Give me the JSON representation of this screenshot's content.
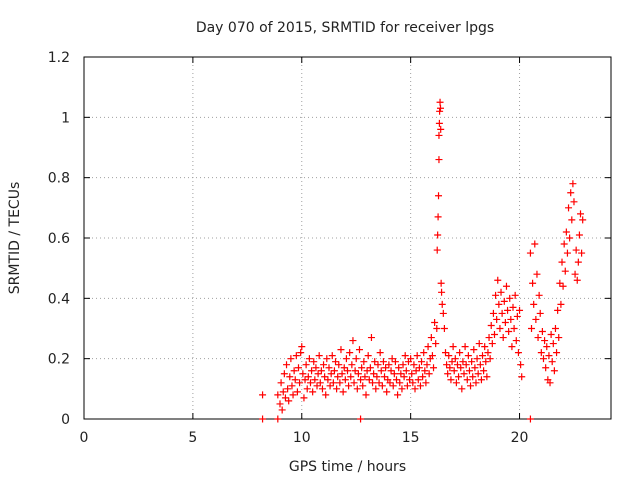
{
  "chart_data": {
    "type": "scatter",
    "title": "Day 070 of 2015, SRMTID for receiver lpgs",
    "xlabel": "GPS time / hours",
    "ylabel": "SRMTID / TECUs",
    "xlim": [
      0,
      24.2
    ],
    "ylim": [
      0,
      1.2
    ],
    "x_ticks": [
      0,
      5,
      10,
      15,
      20
    ],
    "x_tick_labels": [
      "0",
      "5",
      "10",
      "15",
      "20"
    ],
    "y_ticks": [
      0,
      0.2,
      0.4,
      0.6,
      0.8,
      1.0,
      1.2
    ],
    "y_tick_labels": [
      "0",
      "0.2",
      "0.4",
      "0.6",
      "0.8",
      "1",
      "1.2"
    ],
    "grid": true,
    "marker": "+",
    "series": [
      {
        "name": "SRMTID",
        "color": "#ff0000",
        "points": [
          [
            8.2,
            0.08
          ],
          [
            8.2,
            0.0
          ],
          [
            8.9,
            0.0
          ],
          [
            8.9,
            0.08
          ],
          [
            9.0,
            0.05
          ],
          [
            9.05,
            0.12
          ],
          [
            9.1,
            0.03
          ],
          [
            9.15,
            0.09
          ],
          [
            9.2,
            0.15
          ],
          [
            9.25,
            0.07
          ],
          [
            9.3,
            0.18
          ],
          [
            9.35,
            0.1
          ],
          [
            9.4,
            0.06
          ],
          [
            9.45,
            0.14
          ],
          [
            9.5,
            0.2
          ],
          [
            9.55,
            0.11
          ],
          [
            9.6,
            0.08
          ],
          [
            9.65,
            0.16
          ],
          [
            9.7,
            0.13
          ],
          [
            9.75,
            0.21
          ],
          [
            9.8,
            0.09
          ],
          [
            9.85,
            0.17
          ],
          [
            9.9,
            0.12
          ],
          [
            9.95,
            0.22
          ],
          [
            10.0,
            0.24
          ],
          [
            10.05,
            0.15
          ],
          [
            10.1,
            0.07
          ],
          [
            10.15,
            0.13
          ],
          [
            10.2,
            0.18
          ],
          [
            10.25,
            0.1
          ],
          [
            10.3,
            0.14
          ],
          [
            10.35,
            0.2
          ],
          [
            10.4,
            0.12
          ],
          [
            10.45,
            0.16
          ],
          [
            10.5,
            0.09
          ],
          [
            10.55,
            0.19
          ],
          [
            10.6,
            0.13
          ],
          [
            10.65,
            0.17
          ],
          [
            10.7,
            0.11
          ],
          [
            10.75,
            0.15
          ],
          [
            10.8,
            0.21
          ],
          [
            10.85,
            0.12
          ],
          [
            10.9,
            0.16
          ],
          [
            10.95,
            0.1
          ],
          [
            11.0,
            0.18
          ],
          [
            11.05,
            0.14
          ],
          [
            11.1,
            0.08
          ],
          [
            11.15,
            0.2
          ],
          [
            11.2,
            0.13
          ],
          [
            11.25,
            0.17
          ],
          [
            11.3,
            0.11
          ],
          [
            11.35,
            0.15
          ],
          [
            11.4,
            0.21
          ],
          [
            11.45,
            0.12
          ],
          [
            11.5,
            0.16
          ],
          [
            11.55,
            0.19
          ],
          [
            11.6,
            0.1
          ],
          [
            11.65,
            0.14
          ],
          [
            11.7,
            0.18
          ],
          [
            11.75,
            0.12
          ],
          [
            11.8,
            0.23
          ],
          [
            11.85,
            0.15
          ],
          [
            11.9,
            0.09
          ],
          [
            11.95,
            0.17
          ],
          [
            12.0,
            0.13
          ],
          [
            12.05,
            0.2
          ],
          [
            12.1,
            0.16
          ],
          [
            12.15,
            0.11
          ],
          [
            12.2,
            0.22
          ],
          [
            12.25,
            0.14
          ],
          [
            12.3,
            0.18
          ],
          [
            12.35,
            0.26
          ],
          [
            12.4,
            0.12
          ],
          [
            12.45,
            0.16
          ],
          [
            12.5,
            0.2
          ],
          [
            12.55,
            0.1
          ],
          [
            12.6,
            0.15
          ],
          [
            12.65,
            0.23
          ],
          [
            12.7,
            0.0
          ],
          [
            12.7,
            0.13
          ],
          [
            12.75,
            0.17
          ],
          [
            12.8,
            0.11
          ],
          [
            12.85,
            0.19
          ],
          [
            12.9,
            0.14
          ],
          [
            12.95,
            0.08
          ],
          [
            13.0,
            0.16
          ],
          [
            13.05,
            0.21
          ],
          [
            13.1,
            0.13
          ],
          [
            13.15,
            0.17
          ],
          [
            13.2,
            0.27
          ],
          [
            13.25,
            0.12
          ],
          [
            13.3,
            0.15
          ],
          [
            13.35,
            0.19
          ],
          [
            13.4,
            0.1
          ],
          [
            13.45,
            0.14
          ],
          [
            13.5,
            0.18
          ],
          [
            13.55,
            0.12
          ],
          [
            13.6,
            0.22
          ],
          [
            13.65,
            0.16
          ],
          [
            13.7,
            0.11
          ],
          [
            13.75,
            0.19
          ],
          [
            13.8,
            0.14
          ],
          [
            13.85,
            0.17
          ],
          [
            13.9,
            0.09
          ],
          [
            13.95,
            0.13
          ],
          [
            14.0,
            0.18
          ],
          [
            14.05,
            0.12
          ],
          [
            14.1,
            0.16
          ],
          [
            14.15,
            0.2
          ],
          [
            14.2,
            0.11
          ],
          [
            14.25,
            0.15
          ],
          [
            14.3,
            0.19
          ],
          [
            14.35,
            0.13
          ],
          [
            14.4,
            0.08
          ],
          [
            14.45,
            0.17
          ],
          [
            14.5,
            0.12
          ],
          [
            14.55,
            0.15
          ],
          [
            14.6,
            0.1
          ],
          [
            14.65,
            0.18
          ],
          [
            14.7,
            0.14
          ],
          [
            14.75,
            0.21
          ],
          [
            14.8,
            0.16
          ],
          [
            14.85,
            0.11
          ],
          [
            14.9,
            0.19
          ],
          [
            14.95,
            0.13
          ],
          [
            15.0,
            0.2
          ],
          [
            15.05,
            0.15
          ],
          [
            15.1,
            0.12
          ],
          [
            15.15,
            0.18
          ],
          [
            15.2,
            0.1
          ],
          [
            15.25,
            0.16
          ],
          [
            15.3,
            0.21
          ],
          [
            15.35,
            0.13
          ],
          [
            15.4,
            0.17
          ],
          [
            15.45,
            0.11
          ],
          [
            15.5,
            0.19
          ],
          [
            15.55,
            0.14
          ],
          [
            15.6,
            0.22
          ],
          [
            15.65,
            0.16
          ],
          [
            15.7,
            0.12
          ],
          [
            15.75,
            0.18
          ],
          [
            15.8,
            0.24
          ],
          [
            15.85,
            0.15
          ],
          [
            15.9,
            0.2
          ],
          [
            15.95,
            0.27
          ],
          [
            16.0,
            0.21
          ],
          [
            16.05,
            0.17
          ],
          [
            16.1,
            0.32
          ],
          [
            16.15,
            0.25
          ],
          [
            16.2,
            0.3
          ],
          [
            16.22,
            0.56
          ],
          [
            16.24,
            0.61
          ],
          [
            16.26,
            0.67
          ],
          [
            16.28,
            0.74
          ],
          [
            16.3,
            0.86
          ],
          [
            16.3,
            0.94
          ],
          [
            16.32,
            0.98
          ],
          [
            16.33,
            1.02
          ],
          [
            16.35,
            1.05
          ],
          [
            16.37,
            1.03
          ],
          [
            16.38,
            0.96
          ],
          [
            16.4,
            0.45
          ],
          [
            16.42,
            0.42
          ],
          [
            16.45,
            0.38
          ],
          [
            16.5,
            0.35
          ],
          [
            16.55,
            0.3
          ],
          [
            16.6,
            0.22
          ],
          [
            16.65,
            0.18
          ],
          [
            16.7,
            0.15
          ],
          [
            16.75,
            0.21
          ],
          [
            16.8,
            0.17
          ],
          [
            16.85,
            0.13
          ],
          [
            16.9,
            0.19
          ],
          [
            16.95,
            0.24
          ],
          [
            17.0,
            0.16
          ],
          [
            17.05,
            0.2
          ],
          [
            17.1,
            0.12
          ],
          [
            17.15,
            0.18
          ],
          [
            17.2,
            0.14
          ],
          [
            17.25,
            0.22
          ],
          [
            17.3,
            0.17
          ],
          [
            17.35,
            0.1
          ],
          [
            17.4,
            0.19
          ],
          [
            17.45,
            0.15
          ],
          [
            17.5,
            0.24
          ],
          [
            17.55,
            0.18
          ],
          [
            17.6,
            0.13
          ],
          [
            17.65,
            0.21
          ],
          [
            17.7,
            0.16
          ],
          [
            17.75,
            0.11
          ],
          [
            17.8,
            0.19
          ],
          [
            17.85,
            0.14
          ],
          [
            17.9,
            0.23
          ],
          [
            17.95,
            0.17
          ],
          [
            18.0,
            0.12
          ],
          [
            18.05,
            0.2
          ],
          [
            18.1,
            0.15
          ],
          [
            18.15,
            0.25
          ],
          [
            18.2,
            0.18
          ],
          [
            18.25,
            0.13
          ],
          [
            18.3,
            0.21
          ],
          [
            18.35,
            0.16
          ],
          [
            18.4,
            0.24
          ],
          [
            18.45,
            0.19
          ],
          [
            18.5,
            0.14
          ],
          [
            18.55,
            0.22
          ],
          [
            18.6,
            0.27
          ],
          [
            18.65,
            0.2
          ],
          [
            18.7,
            0.31
          ],
          [
            18.75,
            0.25
          ],
          [
            18.8,
            0.35
          ],
          [
            18.85,
            0.28
          ],
          [
            18.9,
            0.41
          ],
          [
            18.95,
            0.33
          ],
          [
            19.0,
            0.46
          ],
          [
            19.05,
            0.38
          ],
          [
            19.1,
            0.3
          ],
          [
            19.15,
            0.42
          ],
          [
            19.2,
            0.35
          ],
          [
            19.25,
            0.27
          ],
          [
            19.3,
            0.39
          ],
          [
            19.35,
            0.32
          ],
          [
            19.4,
            0.44
          ],
          [
            19.45,
            0.36
          ],
          [
            19.5,
            0.29
          ],
          [
            19.55,
            0.4
          ],
          [
            19.6,
            0.33
          ],
          [
            19.65,
            0.24
          ],
          [
            19.7,
            0.37
          ],
          [
            19.75,
            0.3
          ],
          [
            19.8,
            0.41
          ],
          [
            19.85,
            0.26
          ],
          [
            19.9,
            0.34
          ],
          [
            19.95,
            0.22
          ],
          [
            20.0,
            0.36
          ],
          [
            20.05,
            0.18
          ],
          [
            20.1,
            0.14
          ],
          [
            20.5,
            0.0
          ],
          [
            20.5,
            0.55
          ],
          [
            20.55,
            0.3
          ],
          [
            20.6,
            0.45
          ],
          [
            20.65,
            0.38
          ],
          [
            20.7,
            0.58
          ],
          [
            20.75,
            0.33
          ],
          [
            20.8,
            0.48
          ],
          [
            20.85,
            0.27
          ],
          [
            20.9,
            0.41
          ],
          [
            20.95,
            0.35
          ],
          [
            21.0,
            0.22
          ],
          [
            21.05,
            0.29
          ],
          [
            21.1,
            0.2
          ],
          [
            21.15,
            0.26
          ],
          [
            21.2,
            0.17
          ],
          [
            21.25,
            0.24
          ],
          [
            21.3,
            0.13
          ],
          [
            21.35,
            0.21
          ],
          [
            21.4,
            0.12
          ],
          [
            21.45,
            0.28
          ],
          [
            21.5,
            0.19
          ],
          [
            21.55,
            0.25
          ],
          [
            21.6,
            0.16
          ],
          [
            21.65,
            0.3
          ],
          [
            21.7,
            0.22
          ],
          [
            21.75,
            0.36
          ],
          [
            21.8,
            0.27
          ],
          [
            21.85,
            0.45
          ],
          [
            21.9,
            0.38
          ],
          [
            21.95,
            0.52
          ],
          [
            22.0,
            0.44
          ],
          [
            22.05,
            0.58
          ],
          [
            22.1,
            0.49
          ],
          [
            22.15,
            0.62
          ],
          [
            22.2,
            0.55
          ],
          [
            22.25,
            0.7
          ],
          [
            22.3,
            0.6
          ],
          [
            22.35,
            0.75
          ],
          [
            22.4,
            0.66
          ],
          [
            22.45,
            0.78
          ],
          [
            22.5,
            0.72
          ],
          [
            22.55,
            0.48
          ],
          [
            22.6,
            0.56
          ],
          [
            22.65,
            0.46
          ],
          [
            22.7,
            0.52
          ],
          [
            22.75,
            0.61
          ],
          [
            22.8,
            0.68
          ],
          [
            22.85,
            0.55
          ],
          [
            22.9,
            0.66
          ]
        ]
      }
    ]
  }
}
